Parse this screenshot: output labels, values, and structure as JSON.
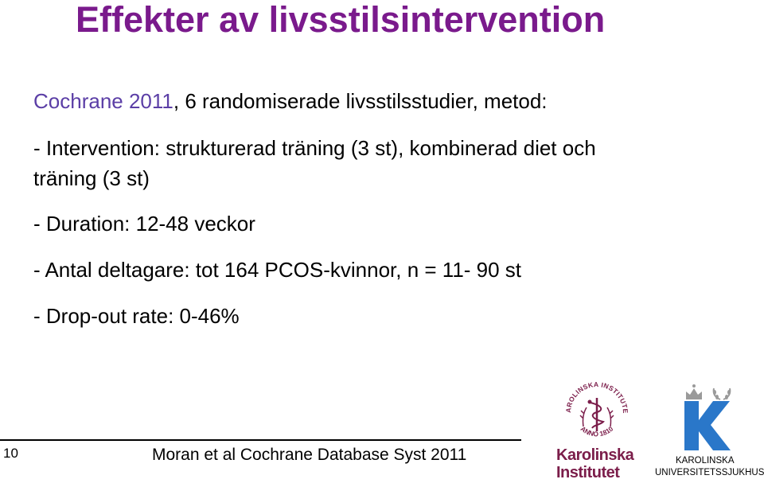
{
  "slide": {
    "title": "Effekter av livsstilsintervention",
    "lines": {
      "intro_highlight": "Cochrane 2011",
      "intro_rest": ", 6 randomiserade livsstilsstudier, metod:",
      "intervention_1": "- Intervention: strukturerad träning (3 st), kombinerad diet och",
      "intervention_2": "träning (3 st)",
      "duration": "- Duration: 12-48 veckor",
      "participants": "- Antal deltagare: tot 164 PCOS-kvinnor, n = 11- 90 st",
      "dropout": "- Drop-out rate: 0-46%"
    },
    "page_number": "10",
    "citation": "Moran et al Cochrane Database Syst 2011"
  },
  "logos": {
    "ki": {
      "seal_text_top": "KAROLINSKA INSTITUTET",
      "seal_text_bottom": "ANNO 1810",
      "word_1": "Karolinska",
      "word_2": "Institutet",
      "color": "#7b1d4a"
    },
    "kus": {
      "line_1": "KAROLINSKA",
      "line_2": "UNIVERSITETSSJUKHUSET",
      "k_color": "#2a77c9",
      "icon": "crown-and-laurel-icon"
    }
  },
  "colors": {
    "title": "#7a1a8c",
    "highlight": "#5b3ea6"
  }
}
